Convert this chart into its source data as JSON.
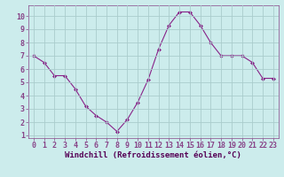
{
  "x": [
    0,
    1,
    2,
    3,
    4,
    5,
    6,
    7,
    8,
    9,
    10,
    11,
    12,
    13,
    14,
    15,
    16,
    17,
    18,
    19,
    20,
    21,
    22,
    23
  ],
  "y": [
    7.0,
    6.5,
    5.5,
    5.5,
    4.5,
    3.2,
    2.5,
    2.0,
    1.3,
    2.2,
    3.5,
    5.2,
    7.5,
    9.3,
    10.3,
    10.3,
    9.3,
    8.0,
    7.0,
    7.0,
    7.0,
    6.5,
    5.3,
    5.3
  ],
  "line_color": "#882288",
  "marker": "D",
  "markersize": 2.0,
  "linewidth": 0.8,
  "xlabel": "Windchill (Refroidissement éolien,°C)",
  "xlabel_fontsize": 6.5,
  "bg_color": "#ccecec",
  "grid_color": "#aacccc",
  "tick_fontsize": 6.0,
  "ylim": [
    0.8,
    10.8
  ],
  "xlim": [
    -0.5,
    23.5
  ],
  "yticks": [
    1,
    2,
    3,
    4,
    5,
    6,
    7,
    8,
    9,
    10
  ],
  "xticks": [
    0,
    1,
    2,
    3,
    4,
    5,
    6,
    7,
    8,
    9,
    10,
    11,
    12,
    13,
    14,
    15,
    16,
    17,
    18,
    19,
    20,
    21,
    22,
    23
  ],
  "spine_color": "#884488",
  "xlabel_color": "#550055"
}
